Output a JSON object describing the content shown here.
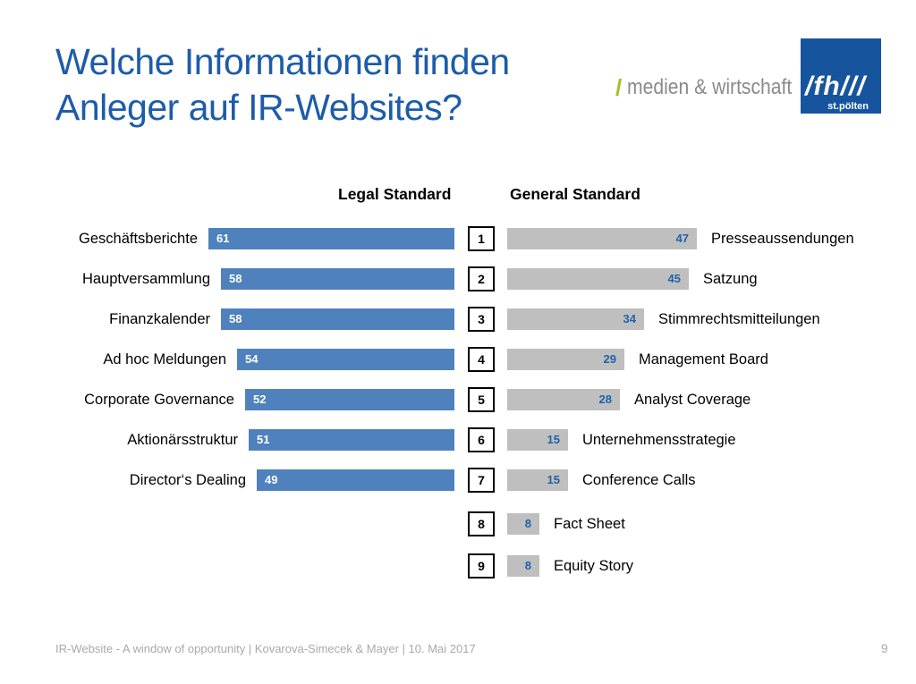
{
  "slide": {
    "title_line1": "Welche Informationen finden",
    "title_line2": "Anleger auf IR-Websites?",
    "footer": "IR-Website - A window of opportunity | Kovarova-Simecek & Mayer | 10. Mai 2017",
    "page_number": "9"
  },
  "logo": {
    "slash": "/",
    "department": "medien & wirtschaft",
    "fh_mark": "/fh///",
    "city": "st.pölten"
  },
  "colors": {
    "title_blue": "#1d5ca8",
    "bar_blue": "#4f81bd",
    "bar_gray": "#bfbfbf",
    "value_blue": "#1f63a8",
    "logo_green": "#aebd23",
    "logo_gray": "#8a8a8a",
    "logo_box_blue": "#17549e",
    "footer_gray": "#a9a9a9"
  },
  "chart_data": {
    "type": "bar",
    "layout": "back-to-back ranked horizontal bars, legal bars grow leftward, general bars grow rightward, rank boxes in center",
    "left_header": "Legal Standard",
    "right_header": "General Standard",
    "ranks": [
      1,
      2,
      3,
      4,
      5,
      6,
      7,
      8,
      9
    ],
    "left_series": {
      "name": "Legal Standard",
      "categories": [
        "Geschäftsberichte",
        "Hauptversammlung",
        "Finanzkalender",
        "Ad hoc Meldungen",
        "Corporate Governance",
        "Aktionärsstruktur",
        "Director‘s Dealing"
      ],
      "values": [
        61,
        58,
        58,
        54,
        52,
        51,
        49
      ]
    },
    "right_series": {
      "name": "General Standard",
      "categories": [
        "Presseaussendungen",
        "Satzung",
        "Stimmrechtsmitteilungen",
        "Management Board",
        "Analyst Coverage",
        "Unternehmensstrategie",
        "Conference Calls",
        "Fact Sheet",
        "Equity Story"
      ],
      "values": [
        47,
        45,
        34,
        29,
        28,
        15,
        15,
        8,
        8
      ]
    },
    "xlim": [
      0,
      61
    ],
    "grid": false,
    "legend": false
  }
}
